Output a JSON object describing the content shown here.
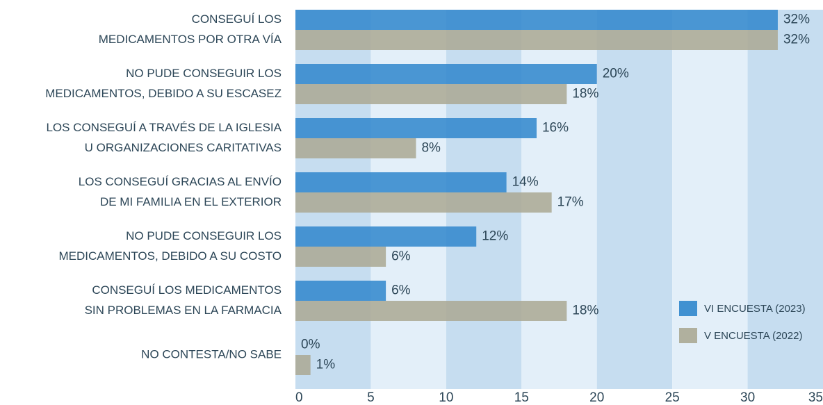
{
  "chart_data": {
    "type": "barh",
    "categories": [
      [
        "CONSEGUÍ LOS",
        "MEDICAMENTOS POR OTRA VÍA"
      ],
      [
        "NO PUDE CONSEGUIR LOS",
        "MEDICAMENTOS, DEBIDO A SU ESCASEZ"
      ],
      [
        "LOS CONSEGUÍ A TRAVÉS DE LA IGLESIA",
        "U ORGANIZACIONES CARITATIVAS"
      ],
      [
        "LOS CONSEGUÍ GRACIAS AL ENVÍO",
        "DE MI FAMILIA EN EL EXTERIOR"
      ],
      [
        "NO PUDE CONSEGUIR LOS",
        "MEDICAMENTOS, DEBIDO A SU COSTO"
      ],
      [
        "CONSEGUÍ LOS MEDICAMENTOS",
        "SIN PROBLEMAS EN LA FARMACIA"
      ],
      [
        "NO CONTESTA/NO SABE"
      ]
    ],
    "series": [
      {
        "name": "VI ENCUESTA (2023)",
        "color": "#2f86cc",
        "values": [
          32,
          20,
          16,
          14,
          12,
          6,
          0
        ],
        "value_labels": [
          "32%",
          "20%",
          "16%",
          "14%",
          "12%",
          "6%",
          "0%"
        ]
      },
      {
        "name": "V ENCUESTA (2022)",
        "color": "#aaa893",
        "values": [
          32,
          18,
          8,
          17,
          6,
          18,
          1
        ],
        "value_labels": [
          "32%",
          "18%",
          "8%",
          "17%",
          "6%",
          "18%",
          "1%"
        ]
      }
    ],
    "xlim": [
      0,
      35
    ],
    "xticks": [
      0,
      5,
      10,
      15,
      20,
      25,
      30,
      35
    ],
    "band_colors": [
      "#c6ddf0",
      "#e3eff9"
    ],
    "legend": "lower right"
  }
}
